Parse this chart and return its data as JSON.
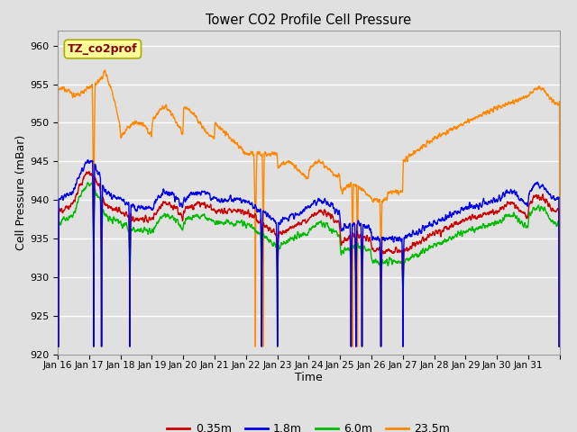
{
  "title": "Tower CO2 Profile Cell Pressure",
  "xlabel": "Time",
  "ylabel": "Cell Pressure (mBar)",
  "ylim": [
    920,
    962
  ],
  "yticks": [
    920,
    925,
    930,
    935,
    940,
    945,
    950,
    955,
    960
  ],
  "series_labels": [
    "0.35m",
    "1.8m",
    "6.0m",
    "23.5m"
  ],
  "series_colors": [
    "#cc0000",
    "#0000ee",
    "#00bb00",
    "#ff8800"
  ],
  "annotation_text": "TZ_co2prof",
  "annotation_color": "#880000",
  "annotation_bg": "#ffff99",
  "annotation_edge": "#aaaa00",
  "tick_labels": [
    "Jan 16",
    "Jan 17",
    "Jan 18",
    "Jan 19",
    "Jan 20",
    "Jan 21",
    "Jan 22",
    "Jan 23",
    "Jan 24",
    "Jan 25",
    "Jan 26",
    "Jan 27",
    "Jan 28",
    "Jan 29",
    "Jan 30",
    "Jan 31"
  ],
  "n_days": 16,
  "points_per_day": 144
}
